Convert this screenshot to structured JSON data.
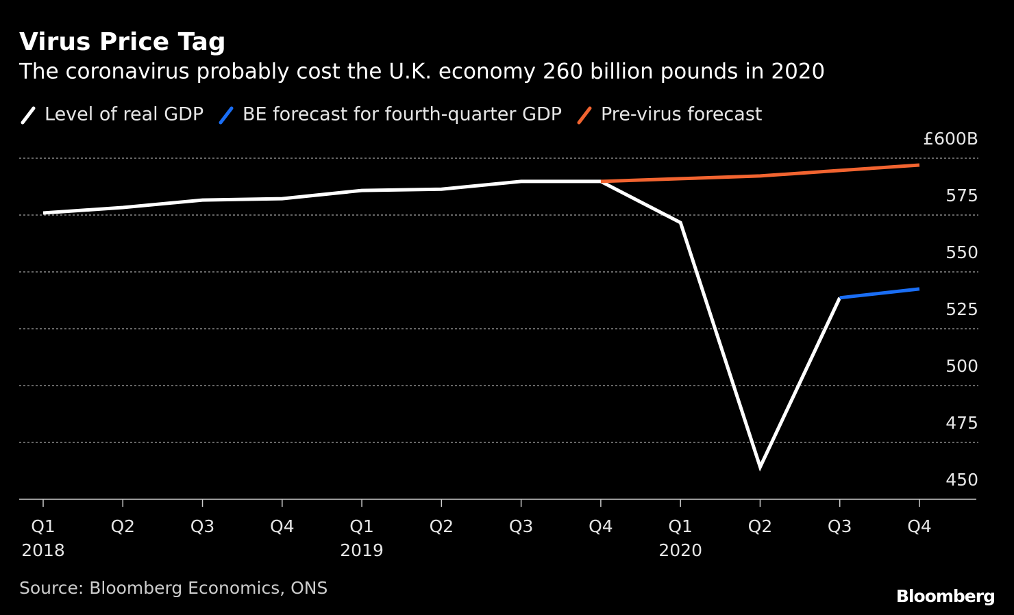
{
  "chart_data": {
    "type": "line",
    "title": "Virus Price Tag",
    "subtitle": "The coronavirus probably cost the U.K. economy 260 billion pounds in 2020",
    "categories": [
      "Q1",
      "Q2",
      "Q3",
      "Q4",
      "Q1",
      "Q2",
      "Q3",
      "Q4",
      "Q1",
      "Q2",
      "Q3",
      "Q4"
    ],
    "year_labels": [
      "2018",
      null,
      null,
      null,
      "2019",
      null,
      null,
      null,
      "2020",
      null,
      null,
      null
    ],
    "series": [
      {
        "name": "Level of real GDP",
        "color": "#ffffff",
        "values": [
          575.9,
          578.3,
          581.6,
          582.2,
          585.8,
          586.4,
          589.8,
          589.8,
          571.7,
          464.2,
          538.6,
          null
        ]
      },
      {
        "name": "BE forecast for fourth-quarter GDP",
        "color": "#1a6ef5",
        "values": [
          null,
          null,
          null,
          null,
          null,
          null,
          null,
          null,
          null,
          null,
          538.6,
          542.5
        ]
      },
      {
        "name": "Pre-virus forecast",
        "color": "#f26430",
        "values": [
          null,
          null,
          null,
          null,
          null,
          null,
          null,
          589.8,
          591.0,
          592.2,
          594.6,
          597.0
        ]
      }
    ],
    "ylim": [
      450,
      600
    ],
    "yticks": [
      450,
      475,
      500,
      525,
      550,
      575,
      {
        "value": 600,
        "label": "£600B"
      }
    ],
    "grid": true,
    "legend": "top",
    "source": "Source: Bloomberg Economics, ONS",
    "brand": "Bloomberg"
  }
}
